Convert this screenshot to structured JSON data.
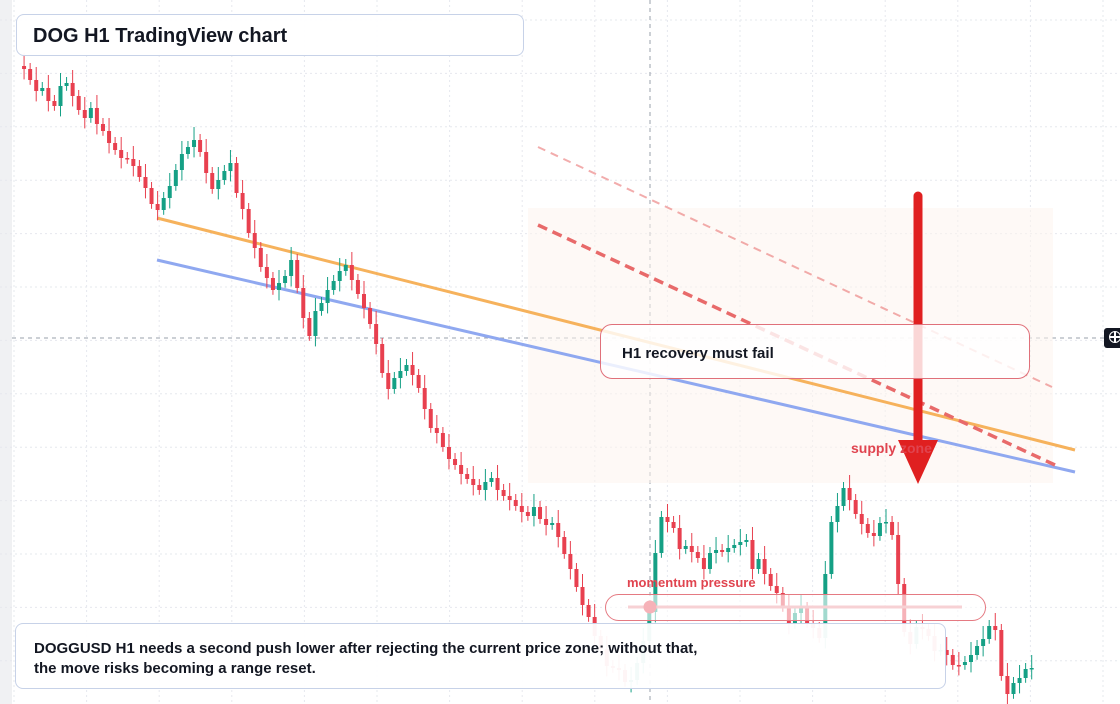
{
  "header": {
    "title": "DOG H1 TradingView chart"
  },
  "annotations": {
    "recovery_note": "H1 recovery must fail",
    "supply_zone_label": "supply zone",
    "momentum_label": "momentum pressure"
  },
  "description": "DOGGUSD H1 needs a second push lower after rejecting the current price zone; without that, the move risks becoming a range reset.",
  "colors": {
    "up_candle": "#15a085",
    "down_candle": "#e8404f",
    "orange_trendline": "#f6b25c",
    "blue_trendline": "#8fa8f0",
    "red_dashed": "#e86a6a",
    "arrow": "#e02020"
  },
  "icons": {
    "crosshair": "crosshair-icon"
  },
  "chart_data": {
    "type": "candlestick",
    "title": "DOG H1 TradingView chart",
    "symbol": "DOGGUSD",
    "timeframe": "H1",
    "grid": true,
    "close_values": [
      28,
      31,
      42,
      53,
      50,
      63,
      68,
      48,
      45,
      58,
      72,
      80,
      70,
      86,
      93,
      105,
      112,
      120,
      121,
      128,
      139,
      150,
      166,
      172,
      160,
      148,
      132,
      116,
      109,
      102,
      114,
      135,
      151,
      142,
      133,
      125,
      155,
      171,
      195,
      210,
      229,
      240,
      252,
      245,
      238,
      222,
      250,
      280,
      298,
      273,
      265,
      252,
      243,
      233,
      227,
      242,
      256,
      270,
      286,
      306,
      335,
      351,
      340,
      333,
      327,
      337,
      350,
      371,
      390,
      395,
      409,
      421,
      427,
      436,
      441,
      447,
      452,
      444,
      440,
      452,
      458,
      462,
      468,
      474,
      478,
      469,
      481,
      487,
      485,
      499,
      516,
      531,
      549,
      567,
      579,
      598,
      611,
      628,
      630,
      632,
      644,
      642,
      625,
      603,
      574,
      515,
      479,
      484,
      490,
      511,
      508,
      514,
      520,
      531,
      515,
      512,
      514,
      510,
      507,
      504,
      502,
      531,
      521,
      536,
      548,
      555,
      569,
      586,
      575,
      570,
      585,
      590,
      600,
      536,
      484,
      468,
      450,
      462,
      476,
      486,
      495,
      498,
      485,
      484,
      497,
      546,
      594,
      606,
      589,
      591,
      598,
      613,
      612,
      617,
      627,
      627,
      624,
      617,
      608,
      601,
      588,
      592,
      638,
      656,
      645,
      640,
      631,
      630
    ],
    "trendlines": [
      {
        "name": "orange resistance"
      },
      {
        "name": "blue resistance"
      },
      {
        "name": "red dashed upper"
      },
      {
        "name": "red dashed lower"
      }
    ]
  }
}
